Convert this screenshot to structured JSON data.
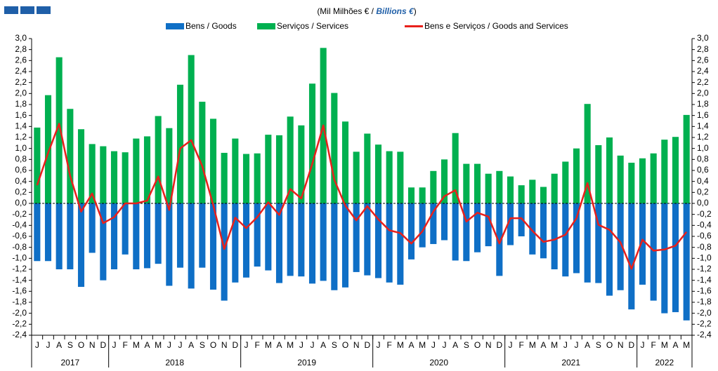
{
  "chart_data": {
    "type": "bar-line",
    "title": [
      "(Mil Milhões  € / ",
      "Billions €",
      ")"
    ],
    "groups": [
      {
        "label": "2017",
        "categories": [
          "J",
          "J",
          "A",
          "S",
          "O",
          "N",
          "D"
        ]
      },
      {
        "label": "2018",
        "categories": [
          "J",
          "F",
          "M",
          "A",
          "M",
          "J",
          "J",
          "A",
          "S",
          "O",
          "N",
          "D"
        ]
      },
      {
        "label": "2019",
        "categories": [
          "J",
          "F",
          "M",
          "A",
          "M",
          "J",
          "J",
          "A",
          "S",
          "O",
          "N",
          "D"
        ]
      },
      {
        "label": "2020",
        "categories": [
          "J",
          "F",
          "M",
          "A",
          "M",
          "J",
          "J",
          "A",
          "S",
          "O",
          "N",
          "D"
        ]
      },
      {
        "label": "2021",
        "categories": [
          "J",
          "F",
          "M",
          "A",
          "M",
          "J",
          "J",
          "A",
          "S",
          "O",
          "N",
          "D"
        ]
      },
      {
        "label": "2022",
        "categories": [
          "J",
          "F",
          "M",
          "A",
          "M"
        ]
      }
    ],
    "series": [
      {
        "name": "Bens / Goods",
        "kind": "bar",
        "color": "#0f6fc6",
        "values": [
          -1.05,
          -1.05,
          -1.2,
          -1.2,
          -1.52,
          -0.9,
          -1.4,
          -1.2,
          -0.93,
          -1.2,
          -1.18,
          -1.1,
          -1.5,
          -1.17,
          -1.55,
          -1.17,
          -1.57,
          -1.77,
          -1.44,
          -1.35,
          -1.15,
          -1.22,
          -1.45,
          -1.32,
          -1.33,
          -1.46,
          -1.41,
          -1.58,
          -1.53,
          -1.25,
          -1.31,
          -1.36,
          -1.44,
          -1.48,
          -1.02,
          -0.8,
          -0.74,
          -0.67,
          -1.04,
          -1.05,
          -0.89,
          -0.78,
          -1.32,
          -0.76,
          -0.6,
          -0.93,
          -1.0,
          -1.2,
          -1.33,
          -1.27,
          -1.44,
          -1.45,
          -1.68,
          -1.58,
          -1.93,
          -1.48,
          -1.77,
          -2.0,
          -1.98,
          -2.13
        ]
      },
      {
        "name": "Serviços / Services",
        "kind": "bar",
        "color": "#00b050",
        "values": [
          1.38,
          1.97,
          2.66,
          1.72,
          1.35,
          1.08,
          1.04,
          0.95,
          0.93,
          1.18,
          1.22,
          1.59,
          1.37,
          2.16,
          2.7,
          1.85,
          1.54,
          0.92,
          1.18,
          0.9,
          0.91,
          1.25,
          1.24,
          1.58,
          1.42,
          2.18,
          2.83,
          2.01,
          1.49,
          0.94,
          1.27,
          1.07,
          0.95,
          0.94,
          0.29,
          0.29,
          0.59,
          0.8,
          1.28,
          0.72,
          0.72,
          0.54,
          0.59,
          0.49,
          0.33,
          0.43,
          0.3,
          0.54,
          0.76,
          1.0,
          1.81,
          1.06,
          1.2,
          0.87,
          0.74,
          0.82,
          0.91,
          1.16,
          1.21,
          1.61
        ]
      },
      {
        "name": "Bens e Serviços  / Goods and Services",
        "kind": "line",
        "color": "#e8201b",
        "values": [
          0.33,
          0.92,
          1.45,
          0.5,
          -0.15,
          0.18,
          -0.36,
          -0.25,
          0,
          0,
          0.05,
          0.49,
          -0.12,
          1.0,
          1.15,
          0.68,
          -0.03,
          -0.83,
          -0.26,
          -0.45,
          -0.25,
          0.02,
          -0.21,
          0.26,
          0.09,
          0.72,
          1.42,
          0.43,
          -0.04,
          -0.31,
          -0.05,
          -0.29,
          -0.49,
          -0.54,
          -0.73,
          -0.51,
          -0.15,
          0.13,
          0.24,
          -0.33,
          -0.17,
          -0.24,
          -0.73,
          -0.27,
          -0.27,
          -0.5,
          -0.7,
          -0.66,
          -0.57,
          -0.27,
          0.37,
          -0.39,
          -0.48,
          -0.71,
          -1.19,
          -0.66,
          -0.86,
          -0.84,
          -0.77,
          -0.52
        ]
      }
    ],
    "ylim": [
      -2.4,
      3.0
    ],
    "yticks": [
      {
        "value": -2.4,
        "label": "-2,4"
      },
      {
        "value": -2.2,
        "label": "-2,2"
      },
      {
        "value": -2.0,
        "label": "-2,0"
      },
      {
        "value": -1.8,
        "label": "-1,8"
      },
      {
        "value": -1.6,
        "label": "-1,6"
      },
      {
        "value": -1.4,
        "label": "-1,4"
      },
      {
        "value": -1.2,
        "label": "-1,2"
      },
      {
        "value": -1.0,
        "label": "-1,0"
      },
      {
        "value": -0.8,
        "label": "-0,8"
      },
      {
        "value": -0.6,
        "label": "-0,6"
      },
      {
        "value": -0.4,
        "label": "-0,4"
      },
      {
        "value": -0.2,
        "label": "-0,2"
      },
      {
        "value": 0,
        "label": "0,0"
      },
      {
        "value": 0.2,
        "label": "0,2"
      },
      {
        "value": 0.4,
        "label": "0,4"
      },
      {
        "value": 0.6,
        "label": "0,6"
      },
      {
        "value": 0.8,
        "label": "0,8"
      },
      {
        "value": 1.0,
        "label": "1,0"
      },
      {
        "value": 1.2,
        "label": "1,2"
      },
      {
        "value": 1.4,
        "label": "1,4"
      },
      {
        "value": 1.6,
        "label": "1,6"
      },
      {
        "value": 1.8,
        "label": "1,8"
      },
      {
        "value": 2.0,
        "label": "2,0"
      },
      {
        "value": 2.2,
        "label": "2,2"
      },
      {
        "value": 2.4,
        "label": "2,4"
      },
      {
        "value": 2.6,
        "label": "2,6"
      },
      {
        "value": 2.8,
        "label": "2,8"
      },
      {
        "value": 3.0,
        "label": "3,0"
      }
    ],
    "y2lim": [
      -2.4,
      3.0
    ],
    "y2ticks": [
      {
        "value": -2.4,
        "label": "-2,4"
      },
      {
        "value": -2.2,
        "label": "-2,2"
      },
      {
        "value": -2.0,
        "label": "-2,0"
      },
      {
        "value": -1.8,
        "label": "-1,8"
      },
      {
        "value": -1.6,
        "label": "-1,6"
      },
      {
        "value": -1.4,
        "label": "-1,4"
      },
      {
        "value": -1.2,
        "label": "-1,2"
      },
      {
        "value": -1.0,
        "label": "-1,0"
      },
      {
        "value": -0.8,
        "label": "-0,8"
      },
      {
        "value": -0.6,
        "label": "-0,6"
      },
      {
        "value": -0.4,
        "label": "-0,4"
      },
      {
        "value": -0.2,
        "label": "-0,2"
      },
      {
        "value": 0,
        "label": "0,0"
      },
      {
        "value": 0.2,
        "label": "0,2"
      },
      {
        "value": 0.4,
        "label": "0,4"
      },
      {
        "value": 0.6,
        "label": "0,6"
      },
      {
        "value": 0.8,
        "label": "0,8"
      },
      {
        "value": 1.0,
        "label": "1,0"
      },
      {
        "value": 1.2,
        "label": "1,2"
      },
      {
        "value": 1.4,
        "label": "1,4"
      },
      {
        "value": 1.6,
        "label": "1,6"
      },
      {
        "value": 1.8,
        "label": "1,8"
      },
      {
        "value": 2.0,
        "label": "2,0"
      },
      {
        "value": 2.2,
        "label": "2,2"
      },
      {
        "value": 2.4,
        "label": "2,4"
      },
      {
        "value": 2.6,
        "label": "2,6"
      },
      {
        "value": 2.8,
        "label": "2,8"
      },
      {
        "value": 3.0,
        "label": "3,0"
      }
    ],
    "grid": false
  }
}
